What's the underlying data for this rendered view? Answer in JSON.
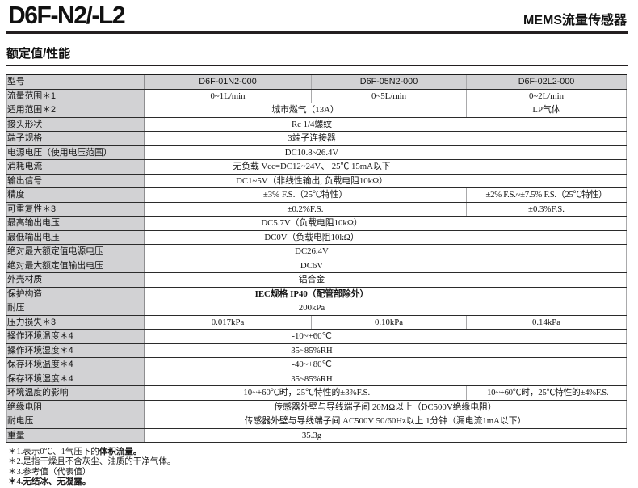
{
  "header": {
    "title": "D6F-N2/-L2",
    "subtitle": "MEMS流量传感器",
    "section_title": "额定值/性能"
  },
  "colors": {
    "label_cell_bg": "#d2d2d4",
    "rule_dark": "#231f20",
    "row_border": "#2b2b2b",
    "column_border": "#a9a9ab",
    "text": "#151515"
  },
  "table": {
    "columns": [
      "label",
      "D6F-01N2-000",
      "D6F-05N2-000",
      "D6F-02L2-000"
    ],
    "rows": [
      {
        "shaded": true,
        "label": "型号",
        "cells": [
          {
            "text": "D6F-01N2-000",
            "span": 1
          },
          {
            "text": "D6F-05N2-000",
            "span": 1
          },
          {
            "text": "D6F-02L2-000",
            "span": 1
          }
        ]
      },
      {
        "label": "流量范围＊1",
        "cells": [
          {
            "text": "0~1L/min",
            "span": 1
          },
          {
            "text": "0~5L/min",
            "span": 1
          },
          {
            "text": "0~2L/min",
            "span": 1
          }
        ]
      },
      {
        "label": "适用范围＊2",
        "cells": [
          {
            "text": "城市燃气（13A）",
            "span": 2
          },
          {
            "text": "LP气体",
            "span": 1
          }
        ]
      },
      {
        "label": "接头形状",
        "cells": [
          {
            "text": "Rc 1/4螺纹",
            "span": 3
          }
        ]
      },
      {
        "label": "端子规格",
        "cells": [
          {
            "text": "3端子连接器",
            "span": 3
          }
        ]
      },
      {
        "label": "电源电压（使用电压范围）",
        "cells": [
          {
            "text": "DC10.8~26.4V",
            "span": 3
          }
        ]
      },
      {
        "label": "消耗电流",
        "cells": [
          {
            "text": "无负载 Vcc=DC12~24V、 25℃ 15mA以下",
            "span": 3
          }
        ]
      },
      {
        "label": "输出信号",
        "cells": [
          {
            "text": "DC1~5V（非线性输出, 负载电阻10kΩ）",
            "span": 3
          }
        ]
      },
      {
        "label": "精度",
        "cells": [
          {
            "text": "±3% F.S.（25℃特性）",
            "span": 2
          },
          {
            "text": "±2% F.S.~±7.5% F.S.（25℃特性）",
            "span": 1,
            "tight": true
          }
        ]
      },
      {
        "label": "可重复性＊3",
        "cells": [
          {
            "text": "±0.2%F.S.",
            "span": 2
          },
          {
            "text": "±0.3%F.S.",
            "span": 1
          }
        ]
      },
      {
        "label": "最高输出电压",
        "cells": [
          {
            "text": "DC5.7V（负载电阻10kΩ）",
            "span": 3
          }
        ]
      },
      {
        "label": "最低输出电压",
        "cells": [
          {
            "text": "DC0V（负载电阻10kΩ）",
            "span": 3
          }
        ]
      },
      {
        "label": "绝对最大额定值电源电压",
        "cells": [
          {
            "text": "DC26.4V",
            "span": 3
          }
        ]
      },
      {
        "label": "绝对最大额定值输出电压",
        "cells": [
          {
            "text": "DC6V",
            "span": 3
          }
        ]
      },
      {
        "label": "外壳材质",
        "cells": [
          {
            "text": "铝合金",
            "span": 3
          }
        ]
      },
      {
        "label": "保护构造",
        "cells": [
          {
            "text": "IEC规格 IP40（配管部除外）",
            "span": 3,
            "bold": true
          }
        ]
      },
      {
        "label": "耐压",
        "cells": [
          {
            "text": "200kPa",
            "span": 3
          }
        ]
      },
      {
        "label": "压力损失＊3",
        "cells": [
          {
            "text": "0.017kPa",
            "span": 1
          },
          {
            "text": "0.10kPa",
            "span": 1
          },
          {
            "text": "0.14kPa",
            "span": 1
          }
        ]
      },
      {
        "label": "操作环境温度＊4",
        "cells": [
          {
            "text": "-10~+60℃",
            "span": 3
          }
        ]
      },
      {
        "label": "操作环境湿度＊4",
        "cells": [
          {
            "text": "35~85%RH",
            "span": 3
          }
        ]
      },
      {
        "label": "保存环境温度＊4",
        "cells": [
          {
            "text": "-40~+80℃",
            "span": 3
          }
        ]
      },
      {
        "label": "保存环境湿度＊4",
        "cells": [
          {
            "text": "35~85%RH",
            "span": 3
          }
        ]
      },
      {
        "label": "环境温度的影响",
        "cells": [
          {
            "text": "-10~+60℃时，25℃特性的±3%F.S.",
            "span": 2
          },
          {
            "text": "-10~+60℃时，25℃特性的±4%F.S.",
            "span": 1,
            "tight": true
          }
        ]
      },
      {
        "label": "绝缘电阻",
        "cells": [
          {
            "text": "传感器外壁与导线端子间 20MΩ以上（DC500V绝缘电阻）",
            "span": 3,
            "full": true
          }
        ]
      },
      {
        "label": "耐电压",
        "cells": [
          {
            "text": "传感器外壁与导线端子间 AC500V 50/60Hz以上 1分钟（漏电流1mA以下）",
            "span": 3,
            "full": true
          }
        ]
      },
      {
        "label": "重量",
        "cells": [
          {
            "text": "35.3g",
            "span": 3
          }
        ]
      }
    ]
  },
  "notes": [
    [
      {
        "text": "＊1.表示0℃、1气压下的",
        "bold": false
      },
      {
        "text": "体积流量。",
        "bold": true
      }
    ],
    [
      {
        "text": "＊2.是指干燥且不含灰尘、油质的干净气体。",
        "bold": false
      }
    ],
    [
      {
        "text": "＊3.参考值（代表值）",
        "bold": false
      }
    ],
    [
      {
        "text": "＊4.无结冰、无凝露。",
        "bold": true
      }
    ]
  ]
}
